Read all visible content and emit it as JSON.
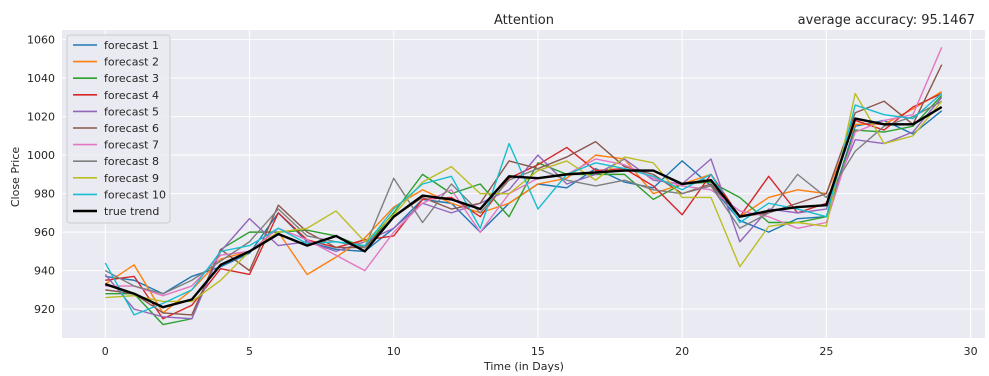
{
  "chart_data": {
    "type": "line",
    "title": "Attention",
    "subtitle": "average accuracy: 95.1467",
    "xlabel": "Time (in Days)",
    "ylabel": "Close Price",
    "xlim": [
      -1.5,
      30.5
    ],
    "ylim": [
      905,
      1065
    ],
    "xticks": [
      0,
      5,
      10,
      15,
      20,
      25,
      30
    ],
    "yticks": [
      920,
      940,
      960,
      980,
      1000,
      1020,
      1040,
      1060
    ],
    "grid": true,
    "legend_position": "top-left",
    "x": [
      0,
      1,
      2,
      3,
      4,
      5,
      6,
      7,
      8,
      9,
      10,
      11,
      12,
      13,
      14,
      15,
      16,
      17,
      18,
      19,
      20,
      21,
      22,
      23,
      24,
      25,
      26,
      27,
      28,
      29
    ],
    "series": [
      {
        "name": "forecast 1",
        "color": "#1f77b4",
        "values": [
          937,
          935,
          928,
          937,
          942,
          949,
          970,
          955,
          951,
          950,
          962,
          977,
          975,
          960,
          975,
          985,
          983,
          993,
          986,
          983,
          997,
          984,
          966,
          960,
          967,
          968,
          1015,
          1018,
          1011,
          1023
        ]
      },
      {
        "name": "forecast 2",
        "color": "#ff7f0e",
        "values": [
          933,
          943,
          918,
          930,
          946,
          950,
          960,
          938,
          947,
          957,
          973,
          982,
          975,
          970,
          975,
          985,
          988,
          1000,
          998,
          980,
          985,
          990,
          968,
          978,
          982,
          980,
          1016,
          1016,
          1024,
          1033
        ]
      },
      {
        "name": "forecast 3",
        "color": "#2ca02c",
        "values": [
          928,
          928,
          912,
          915,
          951,
          960,
          960,
          961,
          958,
          952,
          970,
          990,
          980,
          985,
          968,
          996,
          990,
          990,
          990,
          977,
          985,
          986,
          978,
          965,
          965,
          968,
          1013,
          1012,
          1015,
          1031
        ]
      },
      {
        "name": "forecast 4",
        "color": "#d62728",
        "values": [
          935,
          937,
          915,
          922,
          941,
          938,
          970,
          956,
          952,
          956,
          958,
          977,
          978,
          968,
          988,
          995,
          1004,
          992,
          993,
          984,
          969,
          990,
          968,
          989,
          970,
          975,
          1018,
          1013,
          1025,
          1032
        ]
      },
      {
        "name": "forecast 5",
        "color": "#9467bd",
        "values": [
          938,
          920,
          916,
          915,
          950,
          967,
          953,
          955,
          950,
          955,
          962,
          975,
          970,
          975,
          982,
          1000,
          985,
          990,
          998,
          987,
          985,
          998,
          955,
          972,
          970,
          972,
          1008,
          1006,
          1012,
          1030
        ]
      },
      {
        "name": "forecast 6",
        "color": "#8c564b",
        "values": [
          930,
          928,
          918,
          917,
          951,
          940,
          974,
          960,
          952,
          952,
          968,
          978,
          972,
          975,
          997,
          993,
          999,
          1007,
          994,
          990,
          980,
          985,
          968,
          970,
          975,
          980,
          1022,
          1028,
          1016,
          1047
        ]
      },
      {
        "name": "forecast 7",
        "color": "#e377c2",
        "values": [
          932,
          932,
          927,
          932,
          948,
          950,
          962,
          956,
          948,
          940,
          960,
          975,
          982,
          960,
          980,
          988,
          990,
          998,
          995,
          988,
          984,
          982,
          971,
          968,
          962,
          965,
          1012,
          1018,
          1021,
          1056
        ]
      },
      {
        "name": "forecast 8",
        "color": "#7f7f7f",
        "values": [
          940,
          932,
          928,
          935,
          945,
          955,
          972,
          958,
          955,
          952,
          988,
          965,
          985,
          970,
          987,
          993,
          987,
          984,
          987,
          982,
          980,
          984,
          962,
          970,
          990,
          978,
          1002,
          1015,
          1020,
          1028
        ]
      },
      {
        "name": "forecast 9",
        "color": "#bcbd22",
        "values": [
          926,
          927,
          924,
          924,
          935,
          950,
          960,
          962,
          971,
          955,
          969,
          986,
          994,
          980,
          980,
          992,
          997,
          987,
          999,
          996,
          978,
          978,
          942,
          963,
          965,
          963,
          1032,
          1006,
          1010,
          1028
        ]
      },
      {
        "name": "forecast 10",
        "color": "#17becf",
        "values": [
          944,
          917,
          923,
          930,
          950,
          953,
          962,
          954,
          955,
          953,
          972,
          985,
          989,
          962,
          1006,
          972,
          990,
          996,
          993,
          989,
          982,
          990,
          965,
          975,
          972,
          968,
          1026,
          1021,
          1019,
          1032
        ]
      },
      {
        "name": "true trend",
        "color": "#000000",
        "values": [
          933,
          928,
          921,
          925,
          943,
          950,
          959,
          953,
          958,
          950,
          968,
          979,
          977,
          972,
          989,
          988,
          990,
          991,
          992,
          992,
          985,
          987,
          968,
          971,
          973,
          974,
          1019,
          1016,
          1016,
          1025
        ]
      }
    ]
  }
}
